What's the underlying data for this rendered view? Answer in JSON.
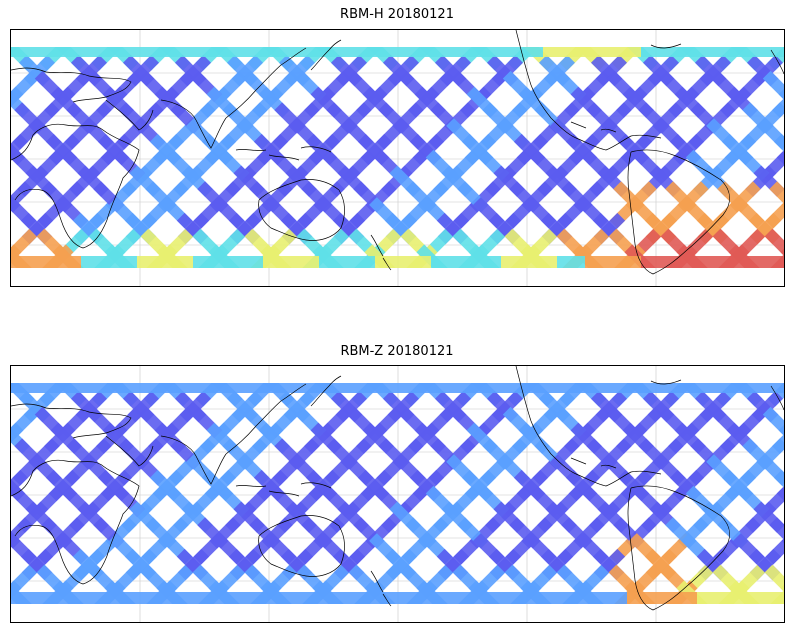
{
  "figure": {
    "panels": [
      {
        "id": "rbm-h",
        "title": "RBM-H 20180121"
      },
      {
        "id": "rbm-z",
        "title": "RBM-Z 20180121"
      }
    ]
  },
  "colors": {
    "low": "#5b5cf0",
    "low_mid": "#5aa0ff",
    "mid": "#5fe0e8",
    "mid_high": "#e8f070",
    "high": "#f5a050",
    "max": "#e05a55",
    "coastline": "#000000",
    "gridline": "#c8c8c8"
  }
}
